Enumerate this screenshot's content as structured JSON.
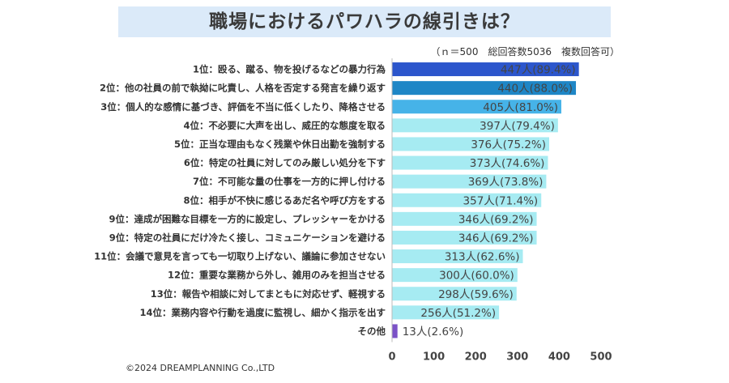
{
  "title": "職場におけるパワハラの線引きは？",
  "note": "（ｎ＝500　総回答数5036　複数回答可）",
  "copyright": "©2024 DREAMPLANNING Co.,LTD",
  "colors": {
    "title_band": "#dbeaf9",
    "top1": "#2c56cc",
    "top2": "#1e86c6",
    "top3": "#46b3e8",
    "rest": "#a6ebf2",
    "other": "#7b52c7"
  },
  "chart_data": {
    "type": "bar",
    "orientation": "horizontal",
    "xlim": [
      0,
      500
    ],
    "xticks": [
      0,
      100,
      200,
      300,
      400,
      500
    ],
    "categories": [
      "1位：殴る、蹴る、物を投げるなどの暴力行為",
      "2位：他の社員の前で執拗に叱責し、人格を否定する発言を繰り返す",
      "3位：個人的な感情に基づき、評価を不当に低くしたり、降格させる",
      "4位：不必要に大声を出し、威圧的な態度を取る",
      "5位：正当な理由もなく残業や休日出勤を強制する",
      "6位：特定の社員に対してのみ厳しい処分を下す",
      "7位：不可能な量の仕事を一方的に押し付ける",
      "8位：相手が不快に感じるあだ名や呼び方をする",
      "9位：達成が困難な目標を一方的に設定し、プレッシャーをかける",
      "9位：特定の社員にだけ冷たく接し、コミュニケーションを避ける",
      "11位：会議で意見を言っても一切取り上げない、議論に参加させない",
      "12位：重要な業務から外し、雑用のみを担当させる",
      "13位：報告や相談に対してまともに対応せず、軽視する",
      "14位：業務内容や行動を過度に監視し、細かく指示を出す",
      "その他"
    ],
    "values": [
      447,
      440,
      405,
      397,
      376,
      373,
      369,
      357,
      346,
      346,
      313,
      300,
      298,
      256,
      13
    ],
    "data_labels": [
      "447人(89.4%)",
      "440人(88.0%)",
      "405人(81.0%)",
      "397人(79.4%)",
      "376人(75.2%)",
      "373人(74.6%)",
      "369人(73.8%)",
      "357人(71.4%)",
      "346人(69.2%)",
      "346人(69.2%)",
      "313人(62.6%)",
      "300人(60.0%)",
      "298人(59.6%)",
      "256人(51.2%)",
      "13人(2.6%)"
    ],
    "bar_colors": [
      "#2c56cc",
      "#1e86c6",
      "#46b3e8",
      "#a6ebf2",
      "#a6ebf2",
      "#a6ebf2",
      "#a6ebf2",
      "#a6ebf2",
      "#a6ebf2",
      "#a6ebf2",
      "#a6ebf2",
      "#a6ebf2",
      "#a6ebf2",
      "#a6ebf2",
      "#7b52c7"
    ],
    "grid": false,
    "legend": "none"
  }
}
